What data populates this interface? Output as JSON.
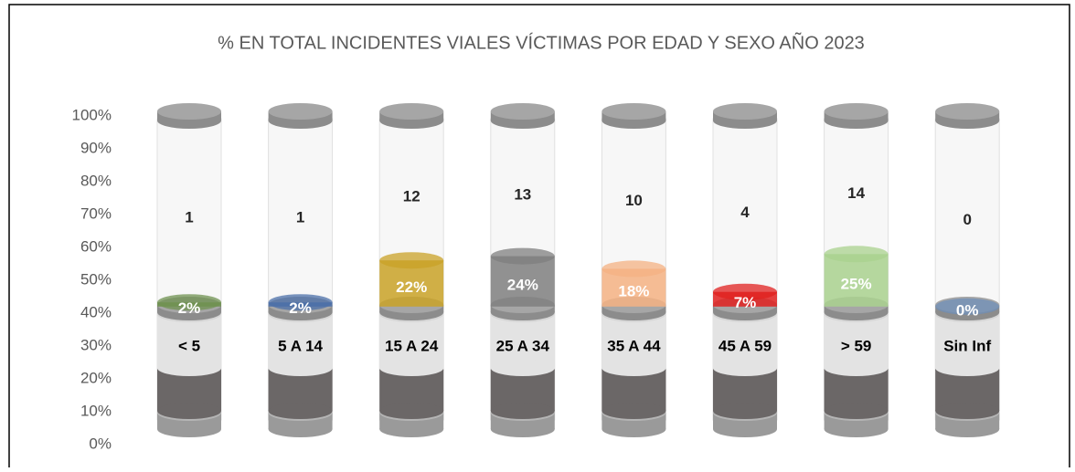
{
  "chart_data": {
    "type": "cylinder",
    "title": "% EN TOTAL INCIDENTES VIALES VÍCTIMAS POR EDAD Y SEXO AÑO 2023",
    "categories": [
      "< 5",
      "5 A 14",
      "15 A 24",
      "25 A 34",
      "35 A 44",
      "45 A 59",
      "> 59",
      "Sin Inf"
    ],
    "values": [
      2,
      2,
      22,
      24,
      18,
      7,
      25,
      0
    ],
    "value_labels": [
      "2%",
      "2%",
      "22%",
      "24%",
      "18%",
      "7%",
      "25%",
      "0%"
    ],
    "counts": [
      1,
      1,
      12,
      13,
      10,
      4,
      14,
      0
    ],
    "colors": [
      "#6f9150",
      "#4b6fa8",
      "#c9a227",
      "#7f7f7f",
      "#f4b183",
      "#e0201f",
      "#a9d18e",
      "#6f8fb8"
    ],
    "ylim": [
      0,
      100
    ],
    "yticks": [
      {
        "value": 0,
        "label": "0%"
      },
      {
        "value": 10,
        "label": "10%"
      },
      {
        "value": 20,
        "label": "20%"
      },
      {
        "value": 30,
        "label": "30%"
      },
      {
        "value": 40,
        "label": "40%"
      },
      {
        "value": 50,
        "label": "50%"
      },
      {
        "value": 60,
        "label": "60%"
      },
      {
        "value": 70,
        "label": "70%"
      },
      {
        "value": 80,
        "label": "80%"
      },
      {
        "value": 90,
        "label": "90%"
      },
      {
        "value": 100,
        "label": "100%"
      }
    ]
  }
}
